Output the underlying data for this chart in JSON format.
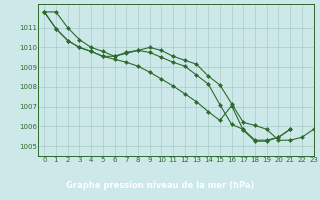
{
  "bg_color": "#cce8e8",
  "grid_color": "#b0d0d0",
  "line_color": "#2d6a2d",
  "marker_color": "#2d6a2d",
  "xlabel": "Graphe pression niveau de la mer (hPa)",
  "ylim": [
    1004.5,
    1012.2
  ],
  "xlim": [
    -0.5,
    23
  ],
  "yticks": [
    1005,
    1006,
    1007,
    1008,
    1009,
    1010,
    1011
  ],
  "xticks": [
    0,
    1,
    2,
    3,
    4,
    5,
    6,
    7,
    8,
    9,
    10,
    11,
    12,
    13,
    14,
    15,
    16,
    17,
    18,
    19,
    20,
    21,
    22,
    23
  ],
  "line1": [
    1011.8,
    1011.8,
    1011.0,
    1010.4,
    1010.0,
    1009.8,
    1009.55,
    1009.75,
    1009.85,
    1010.0,
    1009.85,
    1009.55,
    1009.35,
    1009.15,
    1008.55,
    1008.1,
    1007.15,
    1006.2,
    1006.05,
    1005.85,
    1005.3,
    1005.3,
    1005.45,
    1005.85
  ],
  "line2": [
    1011.8,
    1010.95,
    1010.35,
    1010.0,
    1009.8,
    1009.55,
    1009.55,
    1009.7,
    1009.85,
    1009.75,
    1009.5,
    1009.25,
    1009.05,
    1008.6,
    1008.15,
    1007.1,
    1006.1,
    1005.85,
    1005.3,
    1005.3,
    1005.45,
    1005.85,
    null,
    null
  ],
  "line3": [
    1011.8,
    1010.95,
    1010.35,
    1010.0,
    1009.8,
    1009.55,
    1009.4,
    1009.25,
    1009.05,
    1008.75,
    1008.4,
    1008.05,
    1007.65,
    1007.25,
    1006.75,
    1006.3,
    1007.05,
    1005.8,
    1005.25,
    1005.25,
    1005.45,
    1005.85,
    null,
    null
  ]
}
